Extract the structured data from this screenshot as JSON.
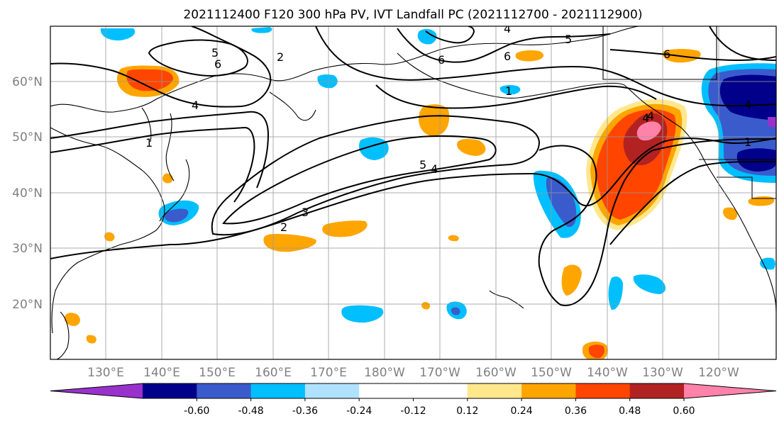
{
  "title": "2021112400 F120 300 hPa PV, IVT Landfall PC (2021112700 - 2021112900)",
  "lat_labels": [
    "60°N",
    "50°N",
    "40°N",
    "30°N",
    "20°N"
  ],
  "lon_labels": [
    "130°E",
    "140°E",
    "150°E",
    "160°E",
    "170°E",
    "180°W",
    "170°W",
    "160°W",
    "150°W",
    "140°W",
    "130°W",
    "120°W"
  ],
  "colorbar": {
    "colors": [
      "#9932cc",
      "#00008b",
      "#3a5bcc",
      "#00bfff",
      "#b0e2ff",
      "#ffffff",
      "#ffffff",
      "#ffe88c",
      "#ffa500",
      "#ff4500",
      "#b22222",
      "#ff82ab"
    ],
    "tick_labels": [
      "-0.60",
      "-0.48",
      "-0.36",
      "-0.24",
      "-0.12",
      "0.12",
      "0.24",
      "0.36",
      "0.48",
      "0.60"
    ]
  },
  "contour_labels": [
    "5",
    "6",
    "2",
    "4",
    "6",
    "6",
    "5",
    "4",
    "1",
    "4",
    "5",
    "4",
    "3",
    "2",
    "6",
    "4",
    "1",
    "4",
    "1"
  ]
}
